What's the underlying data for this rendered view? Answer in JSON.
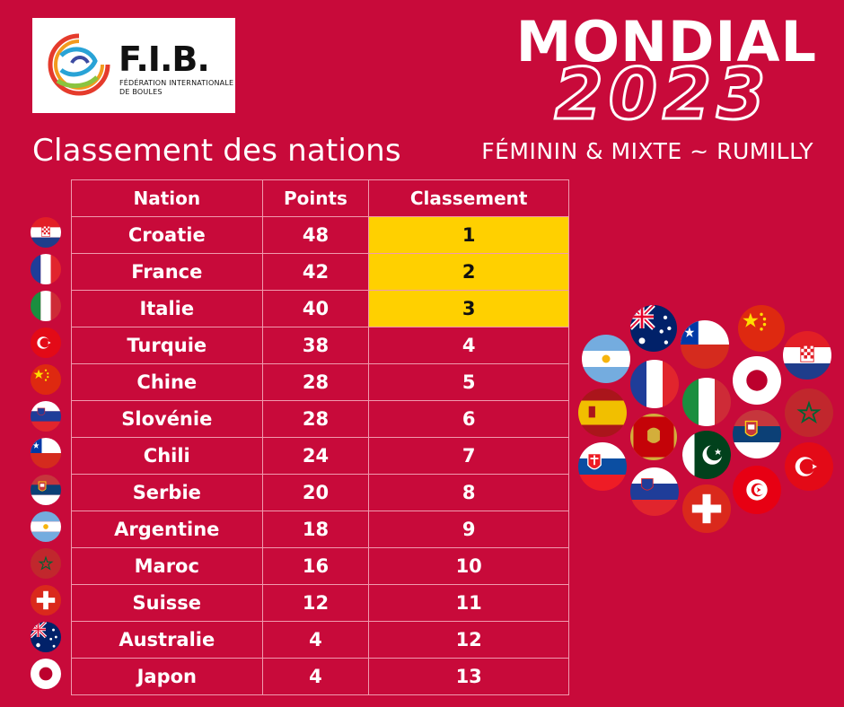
{
  "brand": {
    "abbr": "F.I.B.",
    "name_line1": "FÉDÉRATION INTERNATIONALE",
    "name_line2": "DE BOULES"
  },
  "event": {
    "title": "MONDIAL",
    "year": "2023",
    "edition": "FÉMININ & MIXTE ~ RUMILLY"
  },
  "page_title": "Classement des nations",
  "colors": {
    "background": "#c80a3a",
    "podium_highlight": "#ffd000",
    "grid_line": "#f09aae"
  },
  "table": {
    "headers": [
      "Nation",
      "Points",
      "Classement"
    ],
    "rows": [
      {
        "nation": "Croatie",
        "points": "48",
        "rank": "1",
        "flag": "croatia-flag-icon"
      },
      {
        "nation": "France",
        "points": "42",
        "rank": "2",
        "flag": "france-flag-icon"
      },
      {
        "nation": "Italie",
        "points": "40",
        "rank": "3",
        "flag": "italy-flag-icon"
      },
      {
        "nation": "Turquie",
        "points": "38",
        "rank": "4",
        "flag": "turkey-flag-icon"
      },
      {
        "nation": "Chine",
        "points": "28",
        "rank": "5",
        "flag": "china-flag-icon"
      },
      {
        "nation": "Slovénie",
        "points": "28",
        "rank": "6",
        "flag": "slovenia-flag-icon"
      },
      {
        "nation": "Chili",
        "points": "24",
        "rank": "7",
        "flag": "chile-flag-icon"
      },
      {
        "nation": "Serbie",
        "points": "20",
        "rank": "8",
        "flag": "serbia-flag-icon"
      },
      {
        "nation": "Argentine",
        "points": "18",
        "rank": "9",
        "flag": "argentina-flag-icon"
      },
      {
        "nation": "Maroc",
        "points": "16",
        "rank": "10",
        "flag": "morocco-flag-icon"
      },
      {
        "nation": "Suisse",
        "points": "12",
        "rank": "11",
        "flag": "switzerland-flag-icon"
      },
      {
        "nation": "Australie",
        "points": "4",
        "rank": "12",
        "flag": "australia-flag-icon"
      },
      {
        "nation": "Japon",
        "points": "4",
        "rank": "13",
        "flag": "japan-flag-icon"
      }
    ]
  }
}
